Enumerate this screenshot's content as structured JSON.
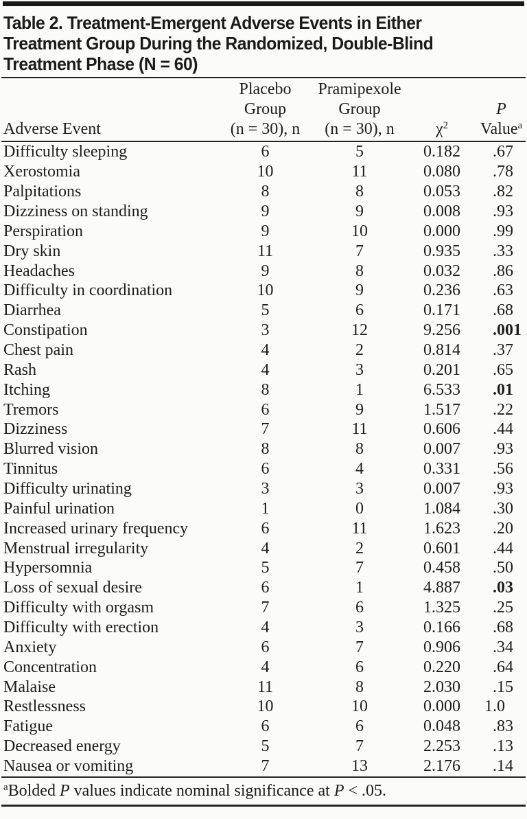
{
  "title_lines": [
    "Table 2. Treatment-Emergent Adverse Events in Either",
    "Treatment Group During the Randomized, Double-Blind",
    "Treatment Phase (N = 60)"
  ],
  "columns": {
    "adverse_event": "Adverse Event",
    "placebo_line1": "Placebo",
    "placebo_line2": "Group",
    "placebo_line3": "(n = 30), n",
    "pramipexole_line1": "Pramipexole",
    "pramipexole_line2": "Group",
    "pramipexole_line3": "(n = 30), n",
    "chi_square_base": "χ",
    "chi_square_sup": "2",
    "p_line1": "P",
    "p_line2_base": "Value",
    "p_line2_sup": "a"
  },
  "rows": [
    {
      "event": "Difficulty sleeping",
      "placebo": "6",
      "pramipexole": "5",
      "chi2": "0.182",
      "p": ".67",
      "p_bold": false
    },
    {
      "event": "Xerostomia",
      "placebo": "10",
      "pramipexole": "11",
      "chi2": "0.080",
      "p": ".78",
      "p_bold": false
    },
    {
      "event": "Palpitations",
      "placebo": "8",
      "pramipexole": "8",
      "chi2": "0.053",
      "p": ".82",
      "p_bold": false
    },
    {
      "event": "Dizziness on standing",
      "placebo": "9",
      "pramipexole": "9",
      "chi2": "0.008",
      "p": ".93",
      "p_bold": false
    },
    {
      "event": "Perspiration",
      "placebo": "9",
      "pramipexole": "10",
      "chi2": "0.000",
      "p": ".99",
      "p_bold": false
    },
    {
      "event": "Dry skin",
      "placebo": "11",
      "pramipexole": "7",
      "chi2": "0.935",
      "p": ".33",
      "p_bold": false
    },
    {
      "event": "Headaches",
      "placebo": "9",
      "pramipexole": "8",
      "chi2": "0.032",
      "p": ".86",
      "p_bold": false
    },
    {
      "event": "Difficulty in coordination",
      "placebo": "10",
      "pramipexole": "9",
      "chi2": "0.236",
      "p": ".63",
      "p_bold": false
    },
    {
      "event": "Diarrhea",
      "placebo": "5",
      "pramipexole": "6",
      "chi2": "0.171",
      "p": ".68",
      "p_bold": false
    },
    {
      "event": "Constipation",
      "placebo": "3",
      "pramipexole": "12",
      "chi2": "9.256",
      "p": ".001",
      "p_bold": true
    },
    {
      "event": "Chest pain",
      "placebo": "4",
      "pramipexole": "2",
      "chi2": "0.814",
      "p": ".37",
      "p_bold": false
    },
    {
      "event": "Rash",
      "placebo": "4",
      "pramipexole": "3",
      "chi2": "0.201",
      "p": ".65",
      "p_bold": false
    },
    {
      "event": "Itching",
      "placebo": "8",
      "pramipexole": "1",
      "chi2": "6.533",
      "p": ".01",
      "p_bold": true
    },
    {
      "event": "Tremors",
      "placebo": "6",
      "pramipexole": "9",
      "chi2": "1.517",
      "p": ".22",
      "p_bold": false
    },
    {
      "event": "Dizziness",
      "placebo": "7",
      "pramipexole": "11",
      "chi2": "0.606",
      "p": ".44",
      "p_bold": false
    },
    {
      "event": "Blurred vision",
      "placebo": "8",
      "pramipexole": "8",
      "chi2": "0.007",
      "p": ".93",
      "p_bold": false
    },
    {
      "event": "Tinnitus",
      "placebo": "6",
      "pramipexole": "4",
      "chi2": "0.331",
      "p": ".56",
      "p_bold": false
    },
    {
      "event": "Difficulty urinating",
      "placebo": "3",
      "pramipexole": "3",
      "chi2": "0.007",
      "p": ".93",
      "p_bold": false
    },
    {
      "event": "Painful urination",
      "placebo": "1",
      "pramipexole": "0",
      "chi2": "1.084",
      "p": ".30",
      "p_bold": false
    },
    {
      "event": "Increased urinary frequency",
      "placebo": "6",
      "pramipexole": "11",
      "chi2": "1.623",
      "p": ".20",
      "p_bold": false
    },
    {
      "event": "Menstrual irregularity",
      "placebo": "4",
      "pramipexole": "2",
      "chi2": "0.601",
      "p": ".44",
      "p_bold": false
    },
    {
      "event": "Hypersomnia",
      "placebo": "5",
      "pramipexole": "7",
      "chi2": "0.458",
      "p": ".50",
      "p_bold": false
    },
    {
      "event": "Loss of sexual desire",
      "placebo": "6",
      "pramipexole": "1",
      "chi2": "4.887",
      "p": ".03",
      "p_bold": true
    },
    {
      "event": "Difficulty with orgasm",
      "placebo": "7",
      "pramipexole": "6",
      "chi2": "1.325",
      "p": ".25",
      "p_bold": false
    },
    {
      "event": "Difficulty with erection",
      "placebo": "4",
      "pramipexole": "3",
      "chi2": "0.166",
      "p": ".68",
      "p_bold": false
    },
    {
      "event": "Anxiety",
      "placebo": "6",
      "pramipexole": "7",
      "chi2": "0.906",
      "p": ".34",
      "p_bold": false
    },
    {
      "event": "Concentration",
      "placebo": "4",
      "pramipexole": "6",
      "chi2": "0.220",
      "p": ".64",
      "p_bold": false
    },
    {
      "event": "Malaise",
      "placebo": "11",
      "pramipexole": "8",
      "chi2": "2.030",
      "p": ".15",
      "p_bold": false
    },
    {
      "event": "Restlessness",
      "placebo": "10",
      "pramipexole": "10",
      "chi2": "0.000",
      "p": "1.0",
      "p_bold": false
    },
    {
      "event": "Fatigue",
      "placebo": "6",
      "pramipexole": "6",
      "chi2": "0.048",
      "p": ".83",
      "p_bold": false
    },
    {
      "event": "Decreased energy",
      "placebo": "5",
      "pramipexole": "7",
      "chi2": "2.253",
      "p": ".13",
      "p_bold": false
    },
    {
      "event": "Nausea or vomiting",
      "placebo": "7",
      "pramipexole": "13",
      "chi2": "2.176",
      "p": ".14",
      "p_bold": false
    }
  ],
  "footnote": {
    "sup": "a",
    "pre": "Bolded ",
    "p1": "P",
    "mid": " values indicate nominal significance at ",
    "p2": "P",
    "post": " < .05."
  },
  "colors": {
    "background": "#fbfbf8",
    "text": "#1d1d1b",
    "rule": "#24241f",
    "top_bar": "#1a1a18"
  }
}
